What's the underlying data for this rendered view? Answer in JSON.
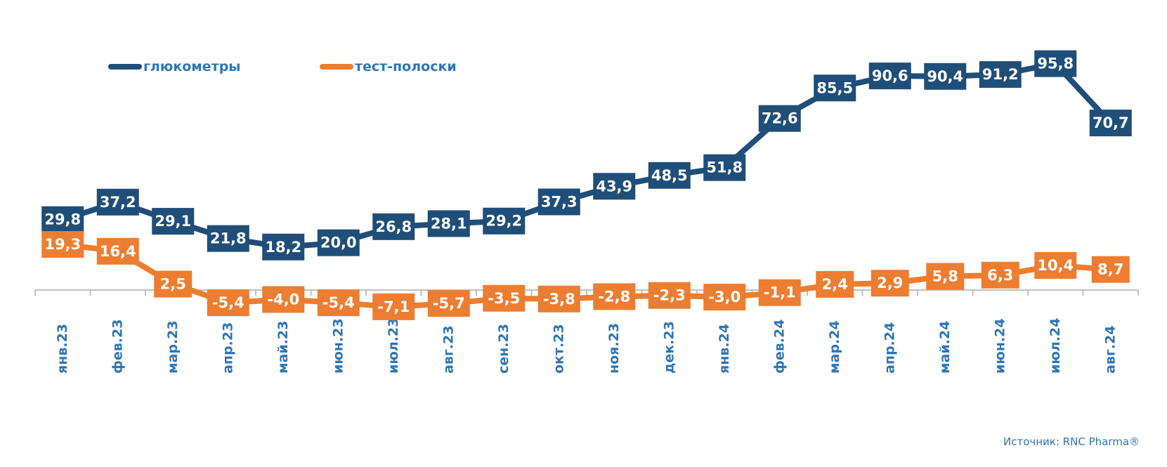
{
  "chart_data": {
    "type": "line",
    "categories": [
      "янв.23",
      "фев.23",
      "мар.23",
      "апр.23",
      "май.23",
      "июн.23",
      "июл.23",
      "авг.23",
      "сен.23",
      "окт.23",
      "ноя.23",
      "дек.23",
      "янв.24",
      "фев.24",
      "мар.24",
      "апр.24",
      "май.24",
      "июн.24",
      "июл.24",
      "авг.24"
    ],
    "series": [
      {
        "name": "глюкометры",
        "color": "#1f4e79",
        "values": [
          29.8,
          37.2,
          29.1,
          21.8,
          18.2,
          20.0,
          26.8,
          28.1,
          29.2,
          37.3,
          43.9,
          48.5,
          51.8,
          72.6,
          85.5,
          90.6,
          90.4,
          91.2,
          95.8,
          70.7
        ],
        "labels": [
          "29,8",
          "37,2",
          "29,1",
          "21,8",
          "18,2",
          "20,0",
          "26,8",
          "28,1",
          "29,2",
          "37,3",
          "43,9",
          "48,5",
          "51,8",
          "72,6",
          "85,5",
          "90,6",
          "90,4",
          "91,2",
          "95,8",
          "70,7"
        ]
      },
      {
        "name": "тест-полоски",
        "color": "#ed7d31",
        "values": [
          19.3,
          16.4,
          2.5,
          -5.4,
          -4.0,
          -5.4,
          -7.1,
          -5.7,
          -3.5,
          -3.8,
          -2.8,
          -2.3,
          -3.0,
          -1.1,
          2.4,
          2.9,
          5.8,
          6.3,
          10.4,
          8.7
        ],
        "labels": [
          "19,3",
          "16,4",
          "2,5",
          "-5,4",
          "-4,0",
          "-5,4",
          "-7,1",
          "-5,7",
          "-3,5",
          "-3,8",
          "-2,8",
          "-2,3",
          "-3,0",
          "-1,1",
          "2,4",
          "2,9",
          "5,8",
          "6,3",
          "10,4",
          "8,7"
        ]
      }
    ],
    "ylim": [
      -10,
      100
    ],
    "grid": false,
    "legend_position": "top-left",
    "tick_color": "#2e75b6",
    "axis_color": "#bfbfbf"
  },
  "source": "Источник: RNC Pharma®"
}
